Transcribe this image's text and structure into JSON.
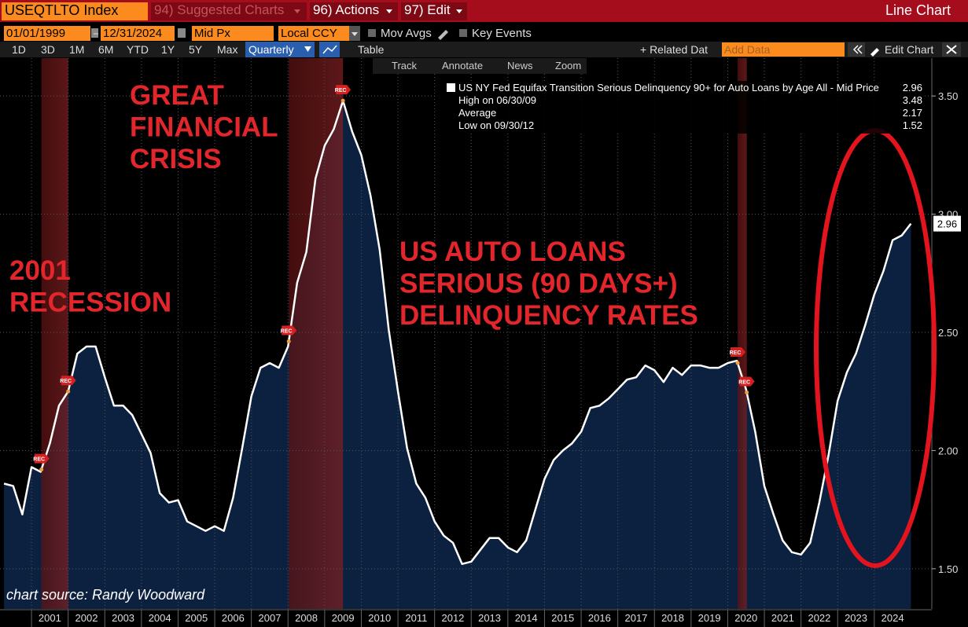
{
  "toolbar": {
    "ticker": "USEQTLTO Index",
    "menus": [
      "94) Suggested Charts",
      "96) Actions",
      "97) Edit"
    ],
    "chart_type_label": "Line Chart",
    "start_date": "01/01/1999",
    "end_date": "12/31/2024",
    "price_field": "Mid Px",
    "currency": "Local CCY",
    "toggles": [
      "Mov Avgs",
      "Key Events"
    ],
    "periods": [
      "1D",
      "3D",
      "1M",
      "6M",
      "YTD",
      "1Y",
      "5Y",
      "Max"
    ],
    "frequency": "Quarterly",
    "table_button": "Table",
    "related": "+ Related Dat",
    "add_data": "Add Data",
    "edit_chart": "Edit Chart",
    "tools": [
      "Track",
      "Annotate",
      "News",
      "Zoom"
    ]
  },
  "chart_data": {
    "type": "line",
    "annotations": [
      {
        "lines": [
          "GREAT",
          "FINANCIAL",
          "CRISIS"
        ]
      },
      {
        "lines": [
          "2001",
          "RECESSION"
        ]
      },
      {
        "lines": [
          "US AUTO LOANS",
          "SERIOUS (90 DAYS+)",
          "DELINQUENCY RATES"
        ]
      }
    ],
    "source": "chart source: Randy Woodward",
    "recession_label": "REC",
    "recessions": [
      [
        2001.27,
        2002.0
      ],
      [
        2008.02,
        2009.5
      ],
      [
        2020.27,
        2020.52
      ]
    ],
    "x": [
      2000.25,
      2000.5,
      2000.75,
      2001,
      2001.25,
      2001.5,
      2001.75,
      2002,
      2002.25,
      2002.5,
      2002.75,
      2003,
      2003.25,
      2003.5,
      2003.75,
      2004,
      2004.25,
      2004.5,
      2004.75,
      2005,
      2005.25,
      2005.5,
      2005.75,
      2006,
      2006.25,
      2006.5,
      2006.75,
      2007,
      2007.25,
      2007.5,
      2007.75,
      2008,
      2008.25,
      2008.5,
      2008.75,
      2009,
      2009.25,
      2009.5,
      2009.75,
      2010,
      2010.25,
      2010.5,
      2010.75,
      2011,
      2011.25,
      2011.5,
      2011.75,
      2012,
      2012.25,
      2012.5,
      2012.75,
      2013,
      2013.25,
      2013.5,
      2013.75,
      2014,
      2014.25,
      2014.5,
      2014.75,
      2015,
      2015.25,
      2015.5,
      2015.75,
      2016,
      2016.25,
      2016.5,
      2016.75,
      2017,
      2017.25,
      2017.5,
      2017.75,
      2018,
      2018.25,
      2018.5,
      2018.75,
      2019,
      2019.25,
      2019.5,
      2019.75,
      2020,
      2020.25,
      2020.5,
      2020.75,
      2021,
      2021.25,
      2021.5,
      2021.75,
      2022,
      2022.25,
      2022.5,
      2022.75,
      2023,
      2023.25,
      2023.5,
      2023.75,
      2024,
      2024.25,
      2024.5,
      2024.75,
      2025
    ],
    "series": [
      {
        "name": "US NY Fed Equifax Transition Serious Delinquency 90+ for Auto Loans by Age All - Mid Price",
        "color": "#ffffff",
        "values": [
          1.86,
          1.85,
          1.73,
          1.93,
          1.91,
          2.03,
          2.19,
          2.25,
          2.41,
          2.44,
          2.44,
          2.31,
          2.19,
          2.19,
          2.15,
          2.07,
          1.99,
          1.82,
          1.78,
          1.79,
          1.7,
          1.68,
          1.66,
          1.68,
          1.66,
          1.8,
          2.01,
          2.23,
          2.35,
          2.37,
          2.35,
          2.44,
          2.71,
          2.84,
          3.15,
          3.29,
          3.36,
          3.48,
          3.35,
          3.25,
          3.08,
          2.85,
          2.51,
          2.25,
          2.01,
          1.86,
          1.8,
          1.7,
          1.64,
          1.61,
          1.52,
          1.53,
          1.58,
          1.63,
          1.63,
          1.59,
          1.57,
          1.62,
          1.75,
          1.88,
          1.96,
          2.0,
          2.03,
          2.08,
          2.18,
          2.19,
          2.22,
          2.26,
          2.3,
          2.31,
          2.36,
          2.34,
          2.29,
          2.35,
          2.32,
          2.36,
          2.36,
          2.35,
          2.35,
          2.37,
          2.38,
          2.26,
          2.08,
          1.85,
          1.73,
          1.62,
          1.57,
          1.56,
          1.61,
          1.78,
          1.98,
          2.21,
          2.33,
          2.41,
          2.53,
          2.66,
          2.76,
          2.89,
          2.91,
          2.96
        ]
      }
    ],
    "stats": [
      {
        "label": "High on 06/30/09",
        "value": 3.48
      },
      {
        "label": "Average",
        "value": 2.17
      },
      {
        "label": "Low on 09/30/12",
        "value": 1.52
      }
    ],
    "area_color": "#0c2140",
    "xlim": [
      2000.14,
      2025.57
    ],
    "xticks": [
      2001,
      2002,
      2003,
      2004,
      2005,
      2006,
      2007,
      2008,
      2009,
      2010,
      2011,
      2012,
      2013,
      2014,
      2015,
      2016,
      2017,
      2018,
      2019,
      2020,
      2021,
      2022,
      2023,
      2024
    ],
    "ylim": [
      1.33,
      3.66
    ],
    "yticks": [
      {
        "value": 1.5,
        "label": "1.50"
      },
      {
        "value": 2,
        "label": "2.00"
      },
      {
        "value": 2.5,
        "label": "2.50"
      },
      {
        "value": 3,
        "label": "3.00"
      },
      {
        "value": 3.5,
        "label": "3.50"
      }
    ],
    "grid": true
  }
}
